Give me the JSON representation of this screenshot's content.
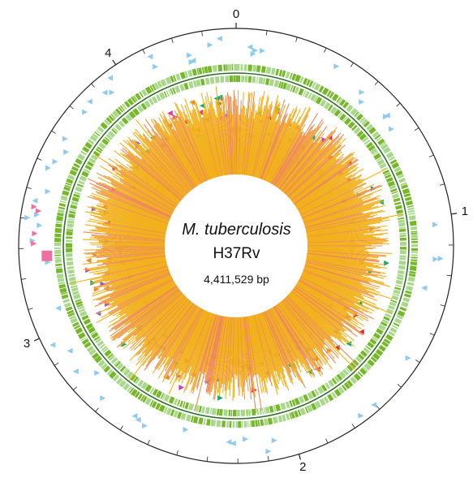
{
  "center": {
    "organism": "M. tuberculosis",
    "strain": "H37Rv",
    "genome_size": "4,411,529 bp"
  },
  "scale": {
    "total_mb": 4.411529,
    "labels": [
      "0",
      "1",
      "2",
      "3",
      "4"
    ]
  },
  "colors": {
    "outline": "#222222",
    "cds_dark": "#76b82a",
    "cds_light": "#a8d88a",
    "backbone": "#2f6e2a",
    "gc_primary": "#f2b11c",
    "gc_secondary": "#ee8a5a",
    "marker_blue": "#8fcbee",
    "marker_red": "#d92a2a",
    "marker_orange": "#ef8a1e",
    "marker_green": "#18a86a",
    "marker_purple": "#8a5cc8",
    "marker_magenta": "#d63cad",
    "marker_pink": "#ef6fa0"
  }
}
